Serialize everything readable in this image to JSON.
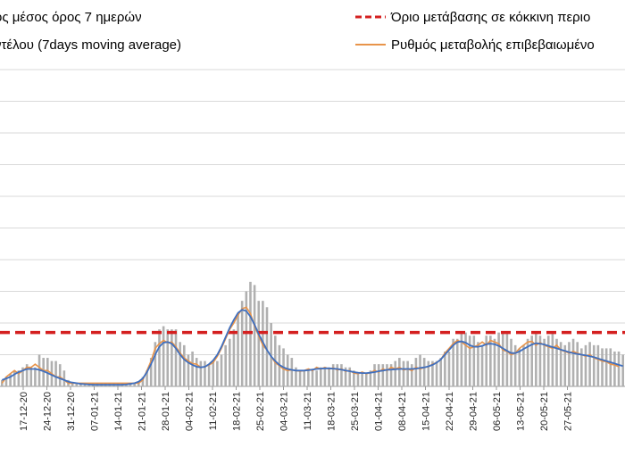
{
  "chart_data": {
    "type": "bar",
    "colors": {
      "bars": "#b0b0b0",
      "threshold": "#d42020",
      "smooth": "#3f6fbf",
      "rate": "#e8944a",
      "grid": "#d9d9d9"
    },
    "legend": [
      {
        "label": "ος μέσος όρος 7 ημερών",
        "style": "blue-line"
      },
      {
        "label": "ντέλου (7days moving average)",
        "style": "blue-line"
      },
      {
        "label": "Όριο μετάβασης σε κόκκινη περιο",
        "style": "red-dash"
      },
      {
        "label": "Ρυθμός μεταβολής επιβεβαιωμένο",
        "style": "orange-line"
      }
    ],
    "x_tick_labels": [
      "17-12-20",
      "24-12-20",
      "31-12-20",
      "07-01-21",
      "14-01-21",
      "21-01-21",
      "28-01-21",
      "04-02-21",
      "11-02-21",
      "18-02-21",
      "25-02-21",
      "04-03-21",
      "11-03-21",
      "18-03-21",
      "25-03-21",
      "01-04-21",
      "08-04-21",
      "15-04-21",
      "22-04-21",
      "29-04-21",
      "06-05-21",
      "13-05-21",
      "20-05-21",
      "27-05-21"
    ],
    "ylim": [
      0,
      10
    ],
    "grid": true,
    "threshold_value": 1.7,
    "bar_values": [
      0.2,
      0.3,
      0.4,
      0.5,
      0.5,
      0.6,
      0.7,
      0.6,
      0.6,
      1.0,
      0.9,
      0.9,
      0.8,
      0.8,
      0.7,
      0.5,
      0.2,
      0.1,
      0.1,
      0.1,
      0.1,
      0.1,
      0.1,
      0.1,
      0.1,
      0.1,
      0.1,
      0.1,
      0.1,
      0.1,
      0.1,
      0.1,
      0.1,
      0.1,
      0.3,
      0.5,
      0.9,
      1.4,
      1.8,
      1.9,
      1.8,
      1.8,
      1.8,
      1.4,
      1.3,
      1.0,
      1.1,
      0.9,
      0.8,
      0.8,
      0.7,
      0.8,
      0.8,
      1.0,
      1.3,
      1.5,
      1.8,
      2.3,
      2.7,
      3.0,
      3.3,
      3.2,
      2.7,
      2.7,
      2.5,
      2.0,
      1.6,
      1.3,
      1.2,
      1.0,
      0.9,
      0.6,
      0.5,
      0.5,
      0.5,
      0.5,
      0.5,
      0.6,
      0.6,
      0.6,
      0.7,
      0.7,
      0.7,
      0.6,
      0.6,
      0.5,
      0.4,
      0.4,
      0.4,
      0.5,
      0.7,
      0.7,
      0.7,
      0.7,
      0.7,
      0.8,
      0.9,
      0.8,
      0.8,
      0.7,
      0.9,
      1.0,
      0.9,
      0.8,
      0.8,
      0.8,
      0.9,
      1.1,
      1.1,
      1.5,
      1.5,
      1.7,
      1.7,
      1.6,
      1.6,
      1.4,
      1.3,
      1.6,
      1.6,
      1.5,
      1.7,
      1.7,
      1.7,
      1.5,
      1.3,
      1.2,
      1.3,
      1.5,
      1.6,
      1.7,
      1.6,
      1.5,
      1.6,
      1.7,
      1.5,
      1.4,
      1.3,
      1.4,
      1.5,
      1.4,
      1.2,
      1.3,
      1.4,
      1.3,
      1.3,
      1.2,
      1.2,
      1.2,
      1.1,
      1.1,
      1.0
    ],
    "smooth_values": [
      0.2,
      0.25,
      0.3,
      0.38,
      0.45,
      0.5,
      0.55,
      0.55,
      0.55,
      0.52,
      0.48,
      0.42,
      0.36,
      0.3,
      0.25,
      0.2,
      0.15,
      0.12,
      0.1,
      0.08,
      0.07,
      0.06,
      0.05,
      0.05,
      0.05,
      0.05,
      0.05,
      0.05,
      0.05,
      0.05,
      0.06,
      0.08,
      0.1,
      0.15,
      0.25,
      0.45,
      0.7,
      1.0,
      1.25,
      1.38,
      1.4,
      1.35,
      1.2,
      1.0,
      0.85,
      0.75,
      0.68,
      0.62,
      0.6,
      0.62,
      0.7,
      0.82,
      1.0,
      1.25,
      1.55,
      1.85,
      2.1,
      2.32,
      2.42,
      2.38,
      2.2,
      1.95,
      1.65,
      1.4,
      1.15,
      0.95,
      0.8,
      0.68,
      0.6,
      0.55,
      0.52,
      0.5,
      0.5,
      0.5,
      0.51,
      0.53,
      0.55,
      0.56,
      0.57,
      0.57,
      0.56,
      0.55,
      0.53,
      0.5,
      0.48,
      0.45,
      0.43,
      0.42,
      0.42,
      0.43,
      0.45,
      0.48,
      0.5,
      0.52,
      0.53,
      0.54,
      0.55,
      0.55,
      0.55,
      0.55,
      0.56,
      0.58,
      0.6,
      0.63,
      0.68,
      0.75,
      0.85,
      1.0,
      1.15,
      1.3,
      1.4,
      1.42,
      1.38,
      1.3,
      1.25,
      1.25,
      1.28,
      1.33,
      1.35,
      1.33,
      1.28,
      1.2,
      1.12,
      1.05,
      1.05,
      1.1,
      1.18,
      1.25,
      1.32,
      1.36,
      1.35,
      1.32,
      1.28,
      1.24,
      1.2,
      1.16,
      1.12,
      1.08,
      1.05,
      1.02,
      1.0,
      0.98,
      0.95,
      0.92,
      0.88,
      0.84,
      0.8,
      0.76,
      0.72,
      0.68,
      0.64
    ],
    "rate_values": [
      0.1,
      0.3,
      0.4,
      0.5,
      0.4,
      0.5,
      0.6,
      0.6,
      0.7,
      0.6,
      0.5,
      0.5,
      0.4,
      0.3,
      0.3,
      0.2,
      0.1,
      0.1,
      0.1,
      0.1,
      0.1,
      0.1,
      0.1,
      0.1,
      0.1,
      0.1,
      0.1,
      0.1,
      0.1,
      0.1,
      0.1,
      0.1,
      0.1,
      0.1,
      0.2,
      0.5,
      0.8,
      1.2,
      1.35,
      1.45,
      1.38,
      1.4,
      1.25,
      1.05,
      0.9,
      0.8,
      0.72,
      0.7,
      0.6,
      0.62,
      0.68,
      0.75,
      0.95,
      1.2,
      1.5,
      1.8,
      2.0,
      2.25,
      2.45,
      2.5,
      2.3,
      1.9,
      1.6,
      1.3,
      1.15,
      0.95,
      0.75,
      0.65,
      0.55,
      0.5,
      0.52,
      0.5,
      0.48,
      0.5,
      0.55,
      0.5,
      0.6,
      0.55,
      0.6,
      0.55,
      0.58,
      0.52,
      0.55,
      0.48,
      0.5,
      0.42,
      0.4,
      0.45,
      0.4,
      0.43,
      0.5,
      0.45,
      0.55,
      0.5,
      0.6,
      0.55,
      0.6,
      0.52,
      0.55,
      0.5,
      0.6,
      0.55,
      0.6,
      0.62,
      0.7,
      0.75,
      0.85,
      1.05,
      1.2,
      1.35,
      1.45,
      1.4,
      1.3,
      1.2,
      1.25,
      1.3,
      1.4,
      1.3,
      1.45,
      1.4,
      1.35,
      1.15,
      1.1,
      1.0,
      1.05,
      1.2,
      1.3,
      1.4,
      1.42,
      1.3,
      1.38,
      1.3,
      1.25,
      1.2,
      1.3,
      1.15,
      1.1,
      1.05,
      1.1,
      1.05,
      1.0,
      0.95,
      1.0,
      0.9,
      0.85,
      0.8,
      0.78,
      0.7,
      0.68,
      0.62
    ]
  }
}
